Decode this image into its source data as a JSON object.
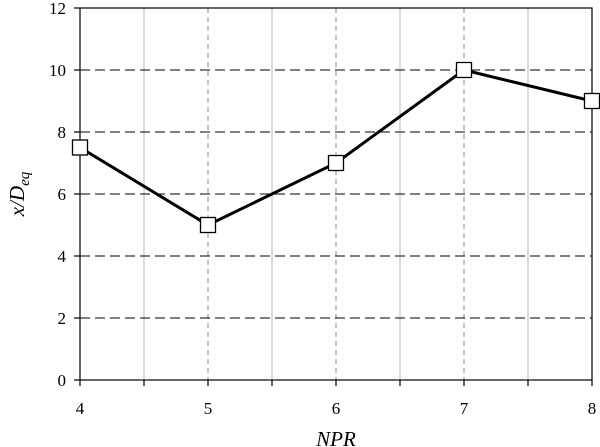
{
  "chart_data": {
    "type": "line",
    "xlabel": "NPR",
    "ylabel": {
      "main": "x/D",
      "sub": "eq"
    },
    "x": [
      4,
      5,
      6,
      7,
      8
    ],
    "series": [
      {
        "values": [
          7.5,
          5,
          7,
          10,
          9
        ],
        "marker": "open-square",
        "color": "#000000"
      }
    ],
    "xlim": [
      4,
      8
    ],
    "ylim": [
      0,
      12
    ],
    "xticks": [
      "4",
      "5",
      "6",
      "7",
      "8"
    ],
    "yticks": [
      "0",
      "2",
      "4",
      "6",
      "8",
      "10",
      "12"
    ],
    "grid": true,
    "legend": "none"
  }
}
